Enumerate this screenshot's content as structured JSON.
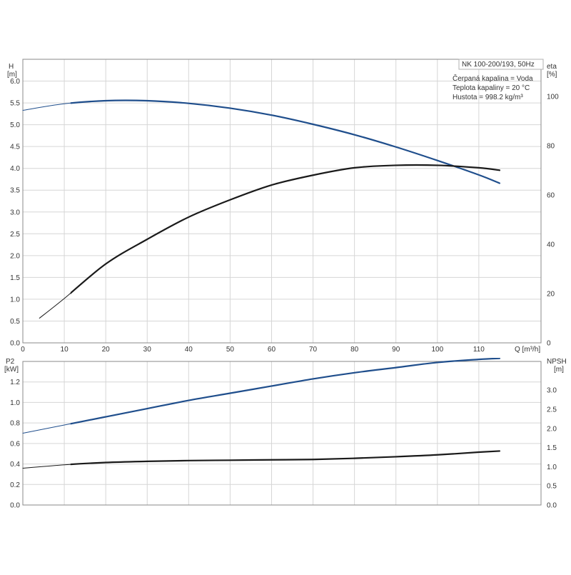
{
  "chart_data": [
    {
      "type": "line",
      "panel": "top",
      "left_axis": {
        "label": "H",
        "unit": "[m]",
        "ylim": [
          0,
          6.5
        ],
        "ticks": [
          "0.0",
          "0.5",
          "1.0",
          "1.5",
          "2.0",
          "2.5",
          "3.0",
          "3.5",
          "4.0",
          "4.5",
          "5.0",
          "5.5",
          "6.0"
        ]
      },
      "right_axis": {
        "label": "eta",
        "unit": "[%]",
        "ylim": [
          0,
          115
        ],
        "ticks": [
          "0",
          "20",
          "40",
          "60",
          "80",
          "100"
        ]
      },
      "x_axis": {
        "label": "Q [m³/h]",
        "xlim": [
          0,
          125
        ],
        "ticks": [
          "0",
          "10",
          "20",
          "30",
          "40",
          "50",
          "60",
          "70",
          "80",
          "90",
          "100",
          "110"
        ]
      },
      "grid": true,
      "legend_placement": "top-right",
      "legend": [
        "NK 100-200/193, 50Hz",
        "Čerpaná kapalina = Voda",
        "Teplota kapaliny = 20 °C",
        "Hustota = 998.2 kg/m³"
      ],
      "series": [
        {
          "axis": "left",
          "color": "#1f4e8c",
          "x": [
            0,
            10,
            20,
            30,
            40,
            50,
            60,
            70,
            80,
            90,
            100,
            110,
            115
          ],
          "y": [
            5.33,
            5.48,
            5.55,
            5.55,
            5.49,
            5.38,
            5.22,
            5.01,
            4.77,
            4.49,
            4.18,
            3.85,
            3.66
          ]
        },
        {
          "axis": "right",
          "color": "#1a1a1a",
          "x": [
            4,
            10,
            20,
            30,
            40,
            50,
            60,
            70,
            80,
            90,
            100,
            110,
            115
          ],
          "y": [
            10,
            18,
            32,
            42,
            51,
            58,
            64,
            68,
            71,
            72,
            72,
            71,
            70
          ]
        }
      ]
    },
    {
      "type": "line",
      "panel": "bottom",
      "left_axis": {
        "label": "P2",
        "unit": "[kW]",
        "ylim": [
          0,
          1.4
        ],
        "ticks": [
          "0.0",
          "0.2",
          "0.4",
          "0.6",
          "0.8",
          "1.0",
          "1.2"
        ]
      },
      "right_axis": {
        "label": "NPSH",
        "unit": "[m]",
        "ylim": [
          0,
          3.75
        ],
        "ticks": [
          "0.0",
          "0.5",
          "1.0",
          "1.5",
          "2.0",
          "2.5",
          "3.0"
        ]
      },
      "x_axis": {
        "xlim": [
          0,
          125
        ]
      },
      "grid": true,
      "series": [
        {
          "axis": "left",
          "color": "#1f4e8c",
          "x": [
            0,
            10,
            20,
            30,
            40,
            50,
            60,
            70,
            80,
            90,
            100,
            110,
            115
          ],
          "y": [
            0.7,
            0.78,
            0.86,
            0.94,
            1.02,
            1.09,
            1.16,
            1.23,
            1.29,
            1.34,
            1.39,
            1.42,
            1.43
          ]
        },
        {
          "axis": "right",
          "color": "#1a1a1a",
          "x": [
            0,
            10,
            20,
            30,
            40,
            50,
            60,
            70,
            80,
            90,
            100,
            110,
            115
          ],
          "y": [
            0.96,
            1.05,
            1.11,
            1.14,
            1.16,
            1.17,
            1.18,
            1.19,
            1.22,
            1.26,
            1.31,
            1.38,
            1.41
          ]
        }
      ]
    }
  ]
}
